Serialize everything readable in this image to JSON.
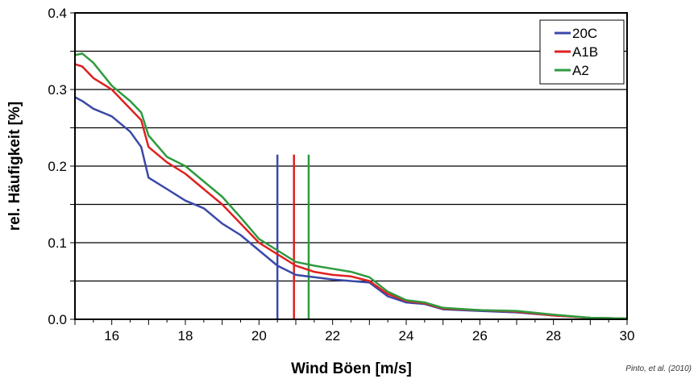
{
  "chart_data": {
    "type": "line",
    "title": "",
    "xlabel": "Wind Böen [m/s]",
    "ylabel": "rel. Häufigkeit [%]",
    "xlim": [
      15,
      30
    ],
    "ylim": [
      0,
      0.4
    ],
    "x_ticks": [
      "16",
      "18",
      "20",
      "22",
      "24",
      "26",
      "28",
      "30"
    ],
    "y_ticks": [
      "0.0",
      "0.1",
      "0.2",
      "0.3",
      "0.4"
    ],
    "grid": "horizontal every 0.05",
    "legend_position": "top-right",
    "series": [
      {
        "name": "20C",
        "color": "#3a49a8",
        "x": [
          15,
          15.2,
          15.5,
          16,
          16.5,
          16.8,
          17,
          17.5,
          18,
          18.5,
          19,
          19.5,
          20,
          20.5,
          21,
          21.5,
          22,
          22.5,
          23,
          23.5,
          24,
          24.5,
          25,
          26,
          27,
          28,
          29,
          30
        ],
        "y": [
          0.29,
          0.285,
          0.275,
          0.265,
          0.245,
          0.225,
          0.185,
          0.17,
          0.155,
          0.145,
          0.125,
          0.11,
          0.09,
          0.07,
          0.058,
          0.055,
          0.052,
          0.05,
          0.048,
          0.03,
          0.022,
          0.02,
          0.013,
          0.011,
          0.009,
          0.005,
          0.002,
          0.001
        ],
        "marker_x": 20.5
      },
      {
        "name": "A1B",
        "color": "#e02020",
        "x": [
          15,
          15.2,
          15.5,
          16,
          16.5,
          16.8,
          17,
          17.5,
          18,
          18.5,
          19,
          19.5,
          20,
          20.5,
          21,
          21.5,
          22,
          22.5,
          23,
          23.5,
          24,
          24.5,
          25,
          26,
          27,
          28,
          29,
          30
        ],
        "y": [
          0.333,
          0.33,
          0.315,
          0.3,
          0.275,
          0.26,
          0.225,
          0.205,
          0.19,
          0.17,
          0.15,
          0.125,
          0.1,
          0.085,
          0.07,
          0.062,
          0.058,
          0.056,
          0.05,
          0.033,
          0.024,
          0.021,
          0.014,
          0.012,
          0.01,
          0.005,
          0.002,
          0.001
        ],
        "marker_x": 20.95
      },
      {
        "name": "A2",
        "color": "#2f9a3e",
        "x": [
          15,
          15.2,
          15.5,
          16,
          16.5,
          16.8,
          17,
          17.5,
          18,
          18.5,
          19,
          19.5,
          20,
          20.5,
          21,
          21.5,
          22,
          22.5,
          23,
          23.5,
          24,
          24.5,
          25,
          26,
          27,
          28,
          29,
          30
        ],
        "y": [
          0.345,
          0.347,
          0.335,
          0.305,
          0.285,
          0.27,
          0.24,
          0.212,
          0.2,
          0.18,
          0.16,
          0.133,
          0.105,
          0.09,
          0.075,
          0.07,
          0.066,
          0.062,
          0.055,
          0.036,
          0.025,
          0.022,
          0.015,
          0.012,
          0.011,
          0.006,
          0.002,
          0.001
        ],
        "marker_x": 21.35
      }
    ],
    "source": "Pinto, et al. (2010)"
  }
}
